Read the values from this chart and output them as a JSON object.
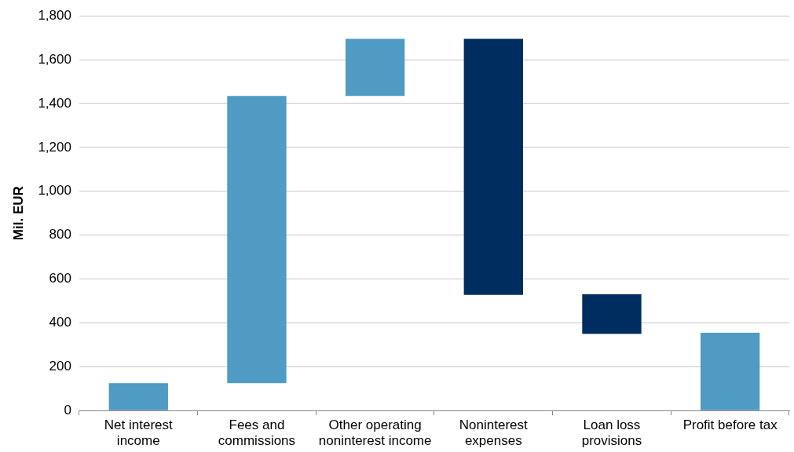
{
  "chart_data": {
    "type": "bar",
    "ylabel": "Mil. EUR",
    "categories": [
      "Net interest income",
      "Fees and commissions",
      "Other operating noninterest income",
      "Noninterest expenses",
      "Loan loss provisions",
      "Profit before tax"
    ],
    "values": [
      125,
      1310,
      260,
      -1167,
      -180,
      355
    ],
    "base": [
      0,
      125,
      1435,
      1695,
      530,
      0
    ],
    "colors": [
      "#4f9bc4",
      "#4f9bc4",
      "#4f9bc4",
      "#002d5f",
      "#002d5f",
      "#4f9bc4"
    ],
    "ylim": [
      0,
      1800
    ],
    "yticks": [
      0,
      {
        "value": 200,
        "label": "200"
      },
      {
        "value": 400,
        "label": "400"
      },
      {
        "value": 600,
        "label": "600"
      },
      {
        "value": 800,
        "label": "800"
      },
      {
        "value": 1000,
        "label": "1,000"
      },
      {
        "value": 1200,
        "label": "1,200"
      },
      {
        "value": 1400,
        "label": "1,400"
      },
      {
        "value": 1600,
        "label": "1,600"
      },
      {
        "value": 1800,
        "label": "1,800"
      }
    ],
    "grid": "y",
    "legend": false
  }
}
